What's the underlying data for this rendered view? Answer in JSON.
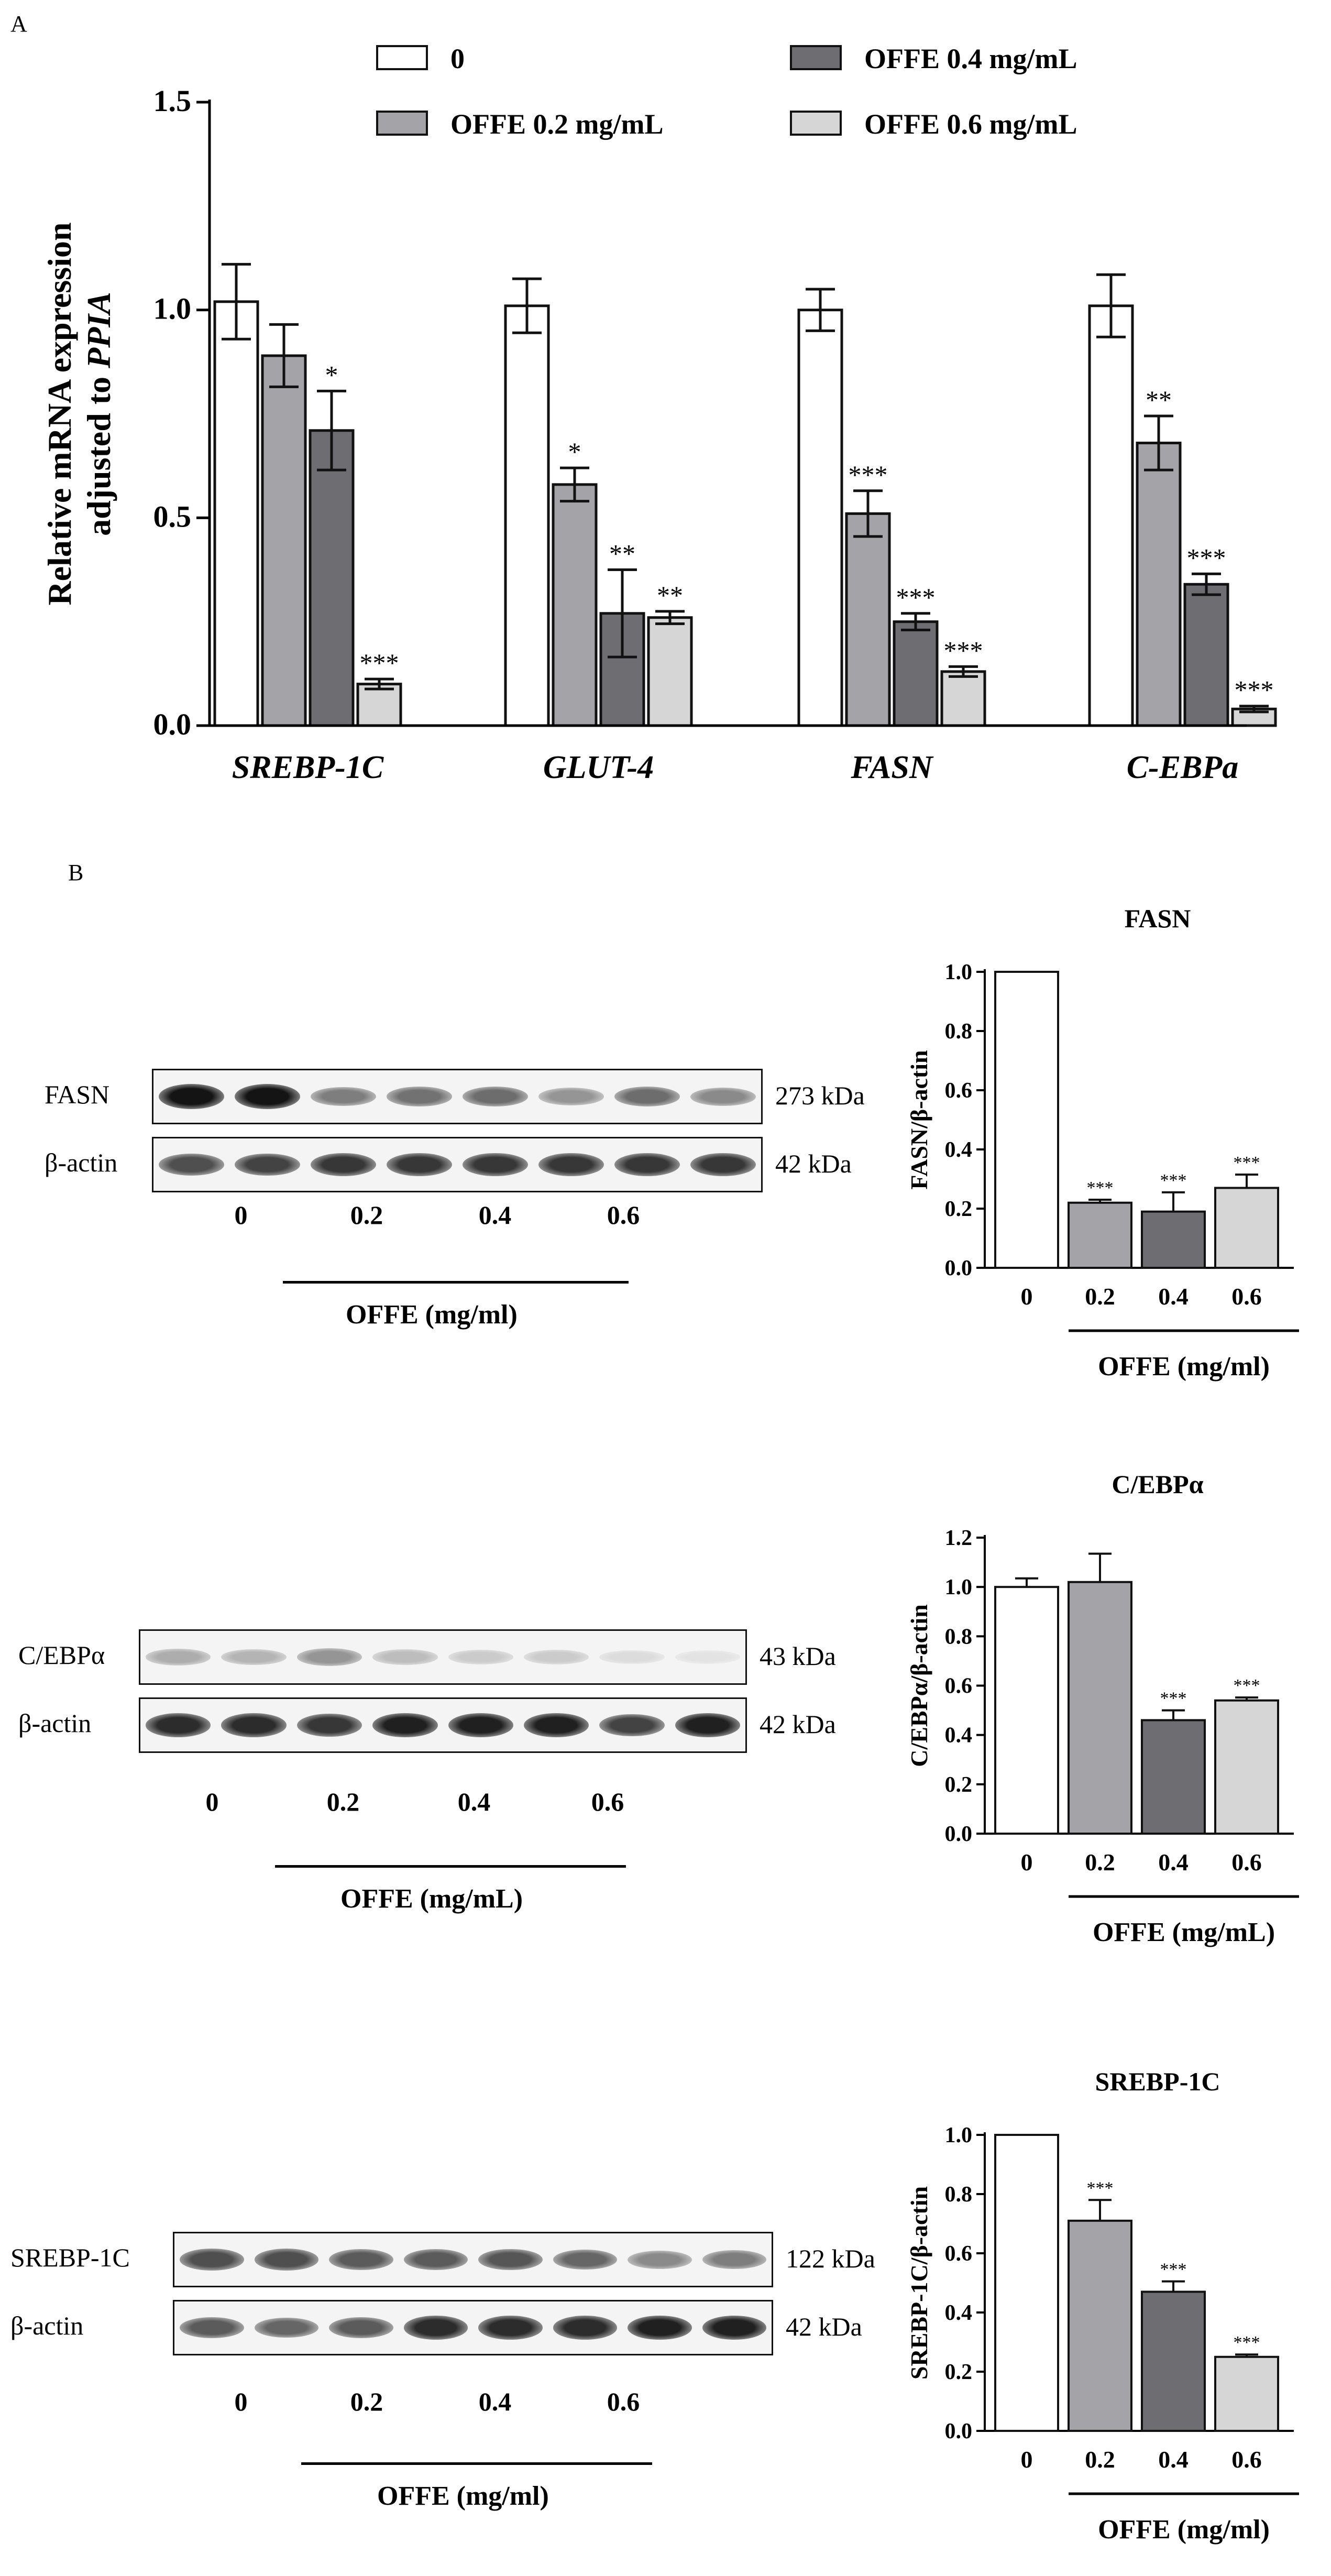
{
  "panels": {
    "a": "A",
    "b": "B"
  },
  "colors": {
    "c0": "#ffffff",
    "c02": "#a4a4a8",
    "c04": "#6e6e72",
    "c06": "#d6d6d6",
    "stroke": "#111111"
  },
  "chart_data": [
    {
      "type": "bar",
      "panel": "A",
      "ylabel": [
        "Relative mRNA expression",
        "adjusted to PPIA"
      ],
      "ylim": [
        0,
        1.5
      ],
      "yticks": [
        "0.0",
        "0.5",
        "1.0",
        "1.5"
      ],
      "categories": [
        "SREBP-1C",
        "GLUT-4",
        "FASN",
        "C-EBPa"
      ],
      "legend": [
        "0",
        "OFFE 0.2 mg/mL",
        "OFFE 0.4 mg/mL",
        "OFFE 0.6 mg/mL"
      ],
      "series": [
        {
          "name": "0",
          "values": [
            1.02,
            1.01,
            1.0,
            1.01
          ],
          "errors": [
            0.09,
            0.065,
            0.05,
            0.075
          ],
          "sig": [
            "",
            "",
            "",
            ""
          ]
        },
        {
          "name": "OFFE 0.2 mg/mL",
          "values": [
            0.89,
            0.58,
            0.51,
            0.68
          ],
          "errors": [
            0.075,
            0.04,
            0.055,
            0.065
          ],
          "sig": [
            "",
            "*",
            "***",
            "**"
          ]
        },
        {
          "name": "OFFE 0.4 mg/mL",
          "values": [
            0.71,
            0.27,
            0.25,
            0.34
          ],
          "errors": [
            0.095,
            0.105,
            0.02,
            0.025
          ],
          "sig": [
            "*",
            "**",
            "***",
            "***"
          ]
        },
        {
          "name": "OFFE 0.6 mg/mL",
          "values": [
            0.1,
            0.26,
            0.13,
            0.04
          ],
          "errors": [
            0.012,
            0.015,
            0.012,
            0.007
          ],
          "sig": [
            "***",
            "**",
            "***",
            "***"
          ]
        }
      ]
    },
    {
      "type": "bar",
      "title": "FASN",
      "ylabel": "FASN/β-actin",
      "ylim": [
        0,
        1.0
      ],
      "yticks": [
        "0.0",
        "0.2",
        "0.4",
        "0.6",
        "0.8",
        "1.0"
      ],
      "categories": [
        "0",
        "0.2",
        "0.4",
        "0.6"
      ],
      "values": [
        1.0,
        0.22,
        0.19,
        0.27
      ],
      "errors": [
        0,
        0.01,
        0.065,
        0.045
      ],
      "sig": [
        "",
        "***",
        "***",
        "***"
      ],
      "xlabel": "OFFE (mg/ml)"
    },
    {
      "type": "bar",
      "title": "C/EBPα",
      "ylabel": "C/EBPα/β-actin",
      "ylim": [
        0,
        1.2
      ],
      "yticks": [
        "0.0",
        "0.2",
        "0.4",
        "0.6",
        "0.8",
        "1.0",
        "1.2"
      ],
      "categories": [
        "0",
        "0.2",
        "0.4",
        "0.6"
      ],
      "values": [
        1.0,
        1.02,
        0.46,
        0.54
      ],
      "errors": [
        0.035,
        0.115,
        0.04,
        0.012
      ],
      "sig": [
        "",
        "",
        "***",
        "***"
      ],
      "xlabel": "OFFE (mg/mL)"
    },
    {
      "type": "bar",
      "title": "SREBP-1C",
      "ylabel": "SREBP-1C/β-actin",
      "ylim": [
        0,
        1.0
      ],
      "yticks": [
        "0.0",
        "0.2",
        "0.4",
        "0.6",
        "0.8",
        "1.0"
      ],
      "categories": [
        "0",
        "0.2",
        "0.4",
        "0.6"
      ],
      "values": [
        1.0,
        0.71,
        0.47,
        0.25
      ],
      "errors": [
        0,
        0.07,
        0.035,
        0.008
      ],
      "sig": [
        "",
        "***",
        "***",
        "***"
      ],
      "xlabel": "OFFE (mg/ml)"
    }
  ],
  "blots": [
    {
      "target": "FASN",
      "target_kda": "273 kDa",
      "loading": "β-actin",
      "loading_kda": "42 kDa",
      "lanes": [
        "0",
        "0.2",
        "0.4",
        "0.6"
      ],
      "treatment": "OFFE (mg/ml)",
      "target_intensity": [
        1.0,
        1.0,
        0.55,
        0.6,
        0.62,
        0.45,
        0.62,
        0.5
      ],
      "loading_intensity": [
        0.75,
        0.8,
        0.85,
        0.85,
        0.85,
        0.85,
        0.85,
        0.85
      ]
    },
    {
      "target": "C/EBPα",
      "target_kda": "43 kDa",
      "loading": "β-actin",
      "loading_kda": "42 kDa",
      "lanes": [
        "0",
        "0.2",
        "0.4",
        "0.6"
      ],
      "treatment": "OFFE (mg/mL)",
      "target_intensity": [
        0.35,
        0.32,
        0.45,
        0.28,
        0.22,
        0.22,
        0.15,
        0.12
      ],
      "loading_intensity": [
        0.9,
        0.9,
        0.85,
        0.95,
        0.95,
        0.95,
        0.8,
        0.95
      ]
    },
    {
      "target": "SREBP-1C",
      "target_kda": "122 kDa",
      "loading": "β-actin",
      "loading_kda": "42 kDa",
      "lanes": [
        "0",
        "0.2",
        "0.4",
        "0.6"
      ],
      "treatment": "OFFE (mg/ml)",
      "target_intensity": [
        0.75,
        0.75,
        0.7,
        0.7,
        0.72,
        0.65,
        0.5,
        0.55
      ],
      "loading_intensity": [
        0.7,
        0.65,
        0.7,
        0.9,
        0.9,
        0.9,
        0.95,
        0.95
      ]
    }
  ]
}
